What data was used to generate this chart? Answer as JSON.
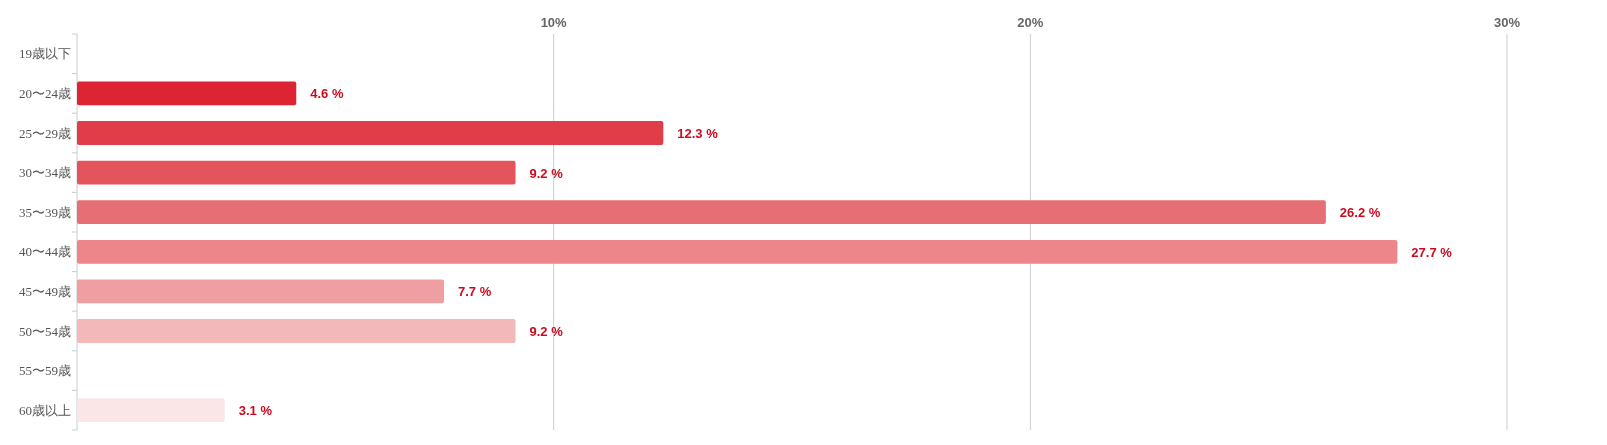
{
  "chart_data": {
    "type": "bar",
    "orientation": "horizontal",
    "categories": [
      "19歳以下",
      "20〜24歳",
      "25〜29歳",
      "30〜34歳",
      "35〜39歳",
      "40〜44歳",
      "45〜49歳",
      "50〜54歳",
      "55〜59歳",
      "60歳以上"
    ],
    "values": [
      null,
      4.6,
      12.3,
      9.2,
      26.2,
      27.7,
      7.7,
      9.2,
      null,
      3.1
    ],
    "colors": [
      null,
      "#dc2433",
      "#e03d48",
      "#e3545d",
      "#e66f76",
      "#ec868b",
      "#ef9fa2",
      "#f3b8ba",
      null,
      "#fae6e7"
    ],
    "value_labels": [
      null,
      "4.6 %",
      "12.3 %",
      "9.2 %",
      "26.2 %",
      "27.7 %",
      "7.7 %",
      "9.2 %",
      null,
      "3.1 %"
    ],
    "xlim": [
      0,
      30
    ],
    "xticks": [
      {
        "value": 10,
        "label": "10%"
      },
      {
        "value": 20,
        "label": "20%"
      },
      {
        "value": 30,
        "label": "30%"
      }
    ],
    "grid": "x"
  }
}
